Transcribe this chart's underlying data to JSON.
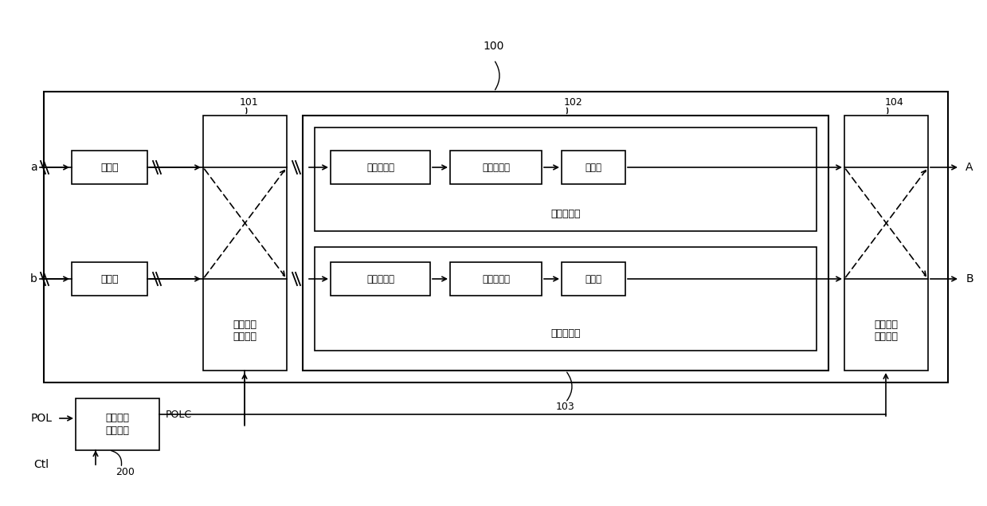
{
  "bg_color": "#ffffff",
  "label_100": "100",
  "label_101": "101",
  "label_102": "102",
  "label_103": "103",
  "label_104": "104",
  "label_200": "200",
  "buf_a": "缓存器",
  "buf_b": "缓存器",
  "ls_pos": "电平位移器",
  "dac_pos": "数模转换器",
  "buf_pos": "缓存器",
  "ls_neg": "电平位移器",
  "dac_neg": "数模转换器",
  "buf_neg": "缓存器",
  "pos_ch": "正电压通道",
  "neg_ch": "负电压通道",
  "mux1": "第一通道\n选择模块",
  "mux2": "第二通道\n选择模块",
  "pol_ctrl": "极性信号\n控制单元",
  "sig_a": "a",
  "sig_b": "b",
  "sig_A": "A",
  "sig_B": "B",
  "sig_POL": "POL",
  "sig_POLC": "POLC",
  "sig_Ctl": "Ctl"
}
